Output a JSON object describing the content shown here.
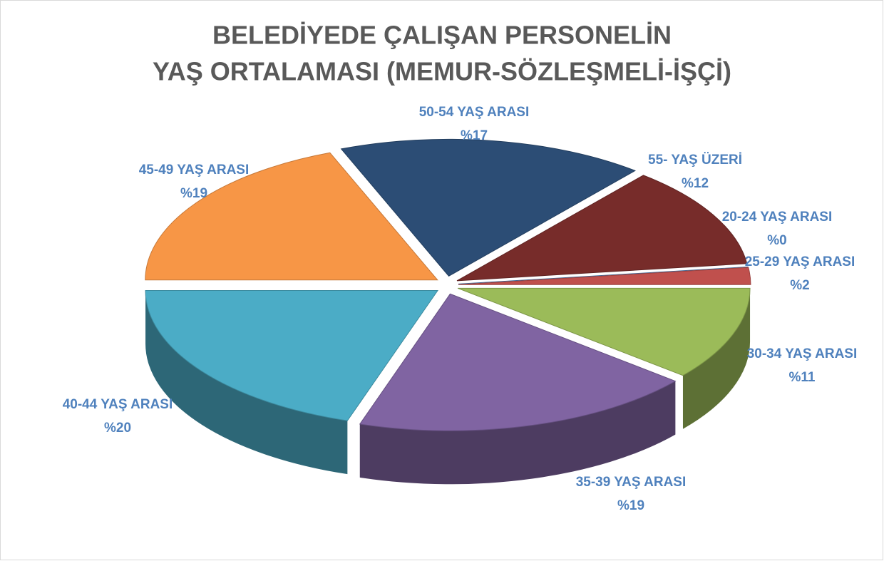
{
  "chart_data": {
    "type": "pie",
    "title": [
      "BELEDİYEDE ÇALIŞAN PERSONELİN",
      "YAŞ ORTALAMASI (MEMUR-SÖZLEŞMELİ-İŞÇİ)"
    ],
    "categories": [
      "20-24 YAŞ ARASI",
      "25-29 YAŞ ARASI",
      "30-34 YAŞ ARASI",
      "35-39 YAŞ ARASI",
      "40-44 YAŞ ARASI",
      "45-49 YAŞ ARASI",
      "50-54 YAŞ ARASI",
      "55- YAŞ ÜZERİ"
    ],
    "values": [
      0,
      2,
      11,
      19,
      20,
      19,
      17,
      12
    ],
    "value_labels": [
      "%0",
      "%2",
      "%11",
      "%19",
      "%20",
      "%19",
      "%17",
      "%12"
    ],
    "colors": [
      "#4f81bd",
      "#c0504d",
      "#9bbb59",
      "#8064a2",
      "#4bacc6",
      "#f79646",
      "#2c4d75",
      "#772c2a"
    ]
  }
}
